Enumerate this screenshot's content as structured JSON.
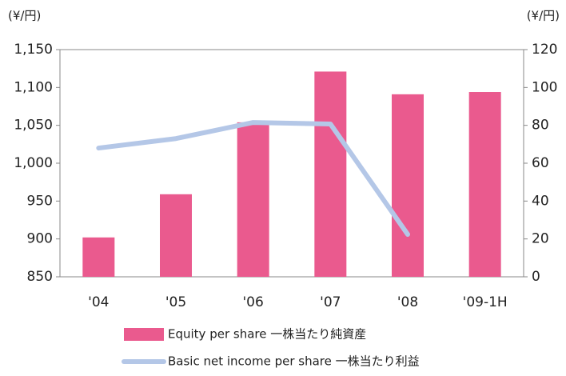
{
  "chart_data": {
    "type": "bar_line",
    "y_label": "(¥/円)",
    "y2_label": "(¥/円)",
    "categories": [
      "'04",
      "'05",
      "'06",
      "'07",
      "'08",
      "'09-1H"
    ],
    "series": [
      {
        "name": "Equity per share 一株当たり純資産",
        "color": "#ea5a8e",
        "type": "bar",
        "values": [
          902,
          959,
          1054,
          1121,
          1091,
          1094
        ]
      },
      {
        "name": "Basic net income per share 一株当たり利益",
        "color": "#b4c7e7",
        "type": "line",
        "axis": "y2",
        "values": [
          68,
          73,
          81.5,
          80.7,
          22.4,
          null
        ]
      }
    ],
    "ylim": [
      850,
      1150
    ],
    "yticks": [
      850,
      900,
      950,
      {
        "value": 1000,
        "label": "1,000"
      },
      {
        "value": 1050,
        "label": "1,050"
      },
      {
        "value": 1100,
        "label": "1,100"
      },
      {
        "value": 1150,
        "label": "1,150"
      }
    ],
    "y2lim": [
      0,
      120
    ],
    "y2ticks": [
      0,
      20,
      40,
      60,
      80,
      100,
      120
    ]
  }
}
